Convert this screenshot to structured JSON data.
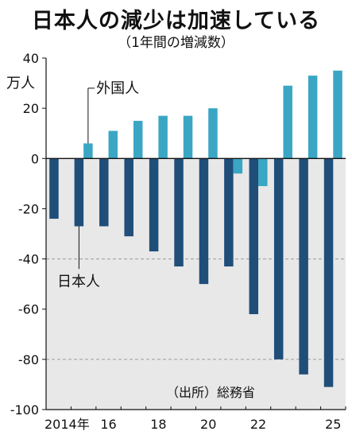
{
  "header": {
    "title": "日本人の減少は加速している",
    "subtitle": "（1年間の増減数）"
  },
  "chart_data": {
    "type": "bar",
    "title": "日本人の減少は加速している",
    "subtitle": "（1年間の増減数）",
    "ylabel": "万人",
    "ylim": [
      -100,
      40
    ],
    "yticks": [
      40,
      20,
      0,
      -20,
      -40,
      -60,
      -80,
      -100
    ],
    "ytick_labels": [
      "40",
      "20",
      "0",
      "-20",
      "-40",
      "-60",
      "-80",
      "-100"
    ],
    "x": [
      2014,
      2015,
      2016,
      2017,
      2018,
      2019,
      2020,
      2021,
      2022,
      2023,
      2024,
      2025
    ],
    "xtick_labels": [
      {
        "year": 2014,
        "label": "2014年"
      },
      {
        "year": 2016,
        "label": "16"
      },
      {
        "year": 2018,
        "label": "18"
      },
      {
        "year": 2020,
        "label": "20"
      },
      {
        "year": 2022,
        "label": "22"
      },
      {
        "year": 2025,
        "label": "25"
      }
    ],
    "series": [
      {
        "name": "日本人",
        "color": "#1f4e79",
        "values": [
          -24,
          -27,
          -27,
          -31,
          -37,
          -43,
          -50,
          -43,
          -62,
          -80,
          -86,
          -91
        ]
      },
      {
        "name": "外国人",
        "color": "#3aa6c4",
        "values": [
          0,
          6,
          11,
          15,
          17,
          17,
          20,
          -6,
          -11,
          29,
          33,
          35
        ]
      }
    ],
    "annotations": [
      "外国人",
      "日本人"
    ],
    "source": "（出所）総務省",
    "grid": "dashed at -40 and -80",
    "negative_region_shading": "#e8e8e8"
  }
}
